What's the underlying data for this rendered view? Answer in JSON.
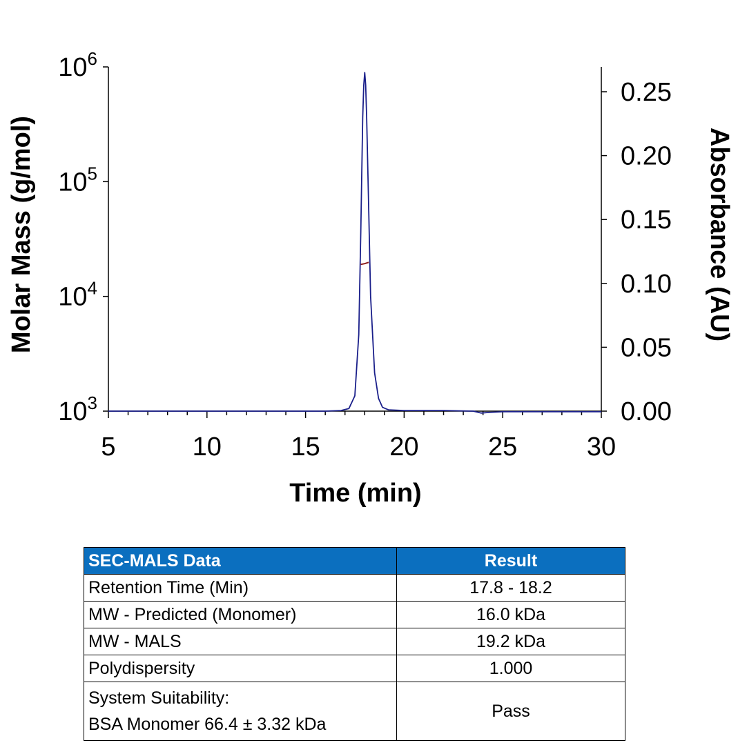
{
  "chart_data": {
    "type": "line",
    "xlabel": "Time (min)",
    "ylabel": "Molar Mass (g/mol)",
    "y2label": "Absorbance (AU)",
    "xlim": [
      5,
      30
    ],
    "x_ticks": [
      "5",
      "10",
      "15",
      "20",
      "25",
      "30"
    ],
    "ylim": [
      1000,
      1000000
    ],
    "y_scale": "log",
    "y_ticks": [
      {
        "base": "10",
        "exp": "3"
      },
      {
        "base": "10",
        "exp": "4"
      },
      {
        "base": "10",
        "exp": "5"
      },
      {
        "base": "10",
        "exp": "6"
      }
    ],
    "y2lim": [
      0.0,
      0.25
    ],
    "y2_ticks": [
      "0.00",
      "0.05",
      "0.10",
      "0.15",
      "0.20",
      "0.25"
    ],
    "grid": false,
    "series": [
      {
        "axis": "right",
        "color": "#1a1f8a",
        "x": [
          5,
          10,
          15,
          16,
          16.8,
          17.2,
          17.5,
          17.7,
          17.8,
          17.9,
          17.95,
          18.0,
          18.05,
          18.1,
          18.2,
          18.3,
          18.5,
          18.7,
          18.9,
          19.2,
          20,
          22,
          23.5,
          23.9,
          24.3,
          25,
          30
        ],
        "values": [
          0.0,
          0.0,
          0.0,
          0.0,
          0.0005,
          0.002,
          0.012,
          0.06,
          0.14,
          0.23,
          0.255,
          0.265,
          0.255,
          0.23,
          0.16,
          0.09,
          0.03,
          0.01,
          0.003,
          0.001,
          0.0005,
          0.0005,
          0.0,
          -0.0015,
          -0.001,
          -0.0005,
          -0.0005
        ]
      },
      {
        "axis": "left",
        "color": "#8b1a1a",
        "x": [
          17.8,
          18.0,
          18.2
        ],
        "values": [
          19000,
          19300,
          19800
        ]
      }
    ]
  },
  "table": {
    "header": [
      "SEC-MALS Data",
      "Result"
    ],
    "rows": [
      {
        "label": "Retention Time (Min)",
        "value": "17.8 - 18.2"
      },
      {
        "label": "MW - Predicted (Monomer)",
        "value": "16.0 kDa"
      },
      {
        "label": "MW - MALS",
        "value": "19.2 kDa"
      },
      {
        "label": "Polydispersity",
        "value": "1.000"
      },
      {
        "label": "System Suitability:",
        "label2": "BSA Monomer 66.4 ± 3.32 kDa",
        "value": "Pass"
      }
    ]
  }
}
